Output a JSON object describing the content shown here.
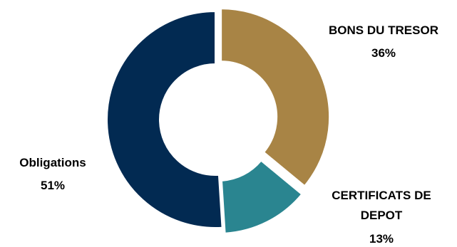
{
  "chart_data": {
    "type": "pie",
    "title": "",
    "donut": true,
    "slices": [
      {
        "label": "BONS DU TRESOR",
        "label_lines": [
          "BONS DU TRESOR"
        ],
        "value": 36,
        "value_label": "36%",
        "color": "#a88445",
        "exploded": true
      },
      {
        "label": "CERTIFICATS DE DEPOT",
        "label_lines": [
          "CERTIFICATS DE",
          "DEPOT"
        ],
        "value": 13,
        "value_label": "13%",
        "color": "#2a8590",
        "exploded": true
      },
      {
        "label": "Obligations",
        "label_lines": [
          "Obligations"
        ],
        "value": 51,
        "value_label": "51%",
        "color": "#022a52",
        "exploded": false
      }
    ]
  }
}
